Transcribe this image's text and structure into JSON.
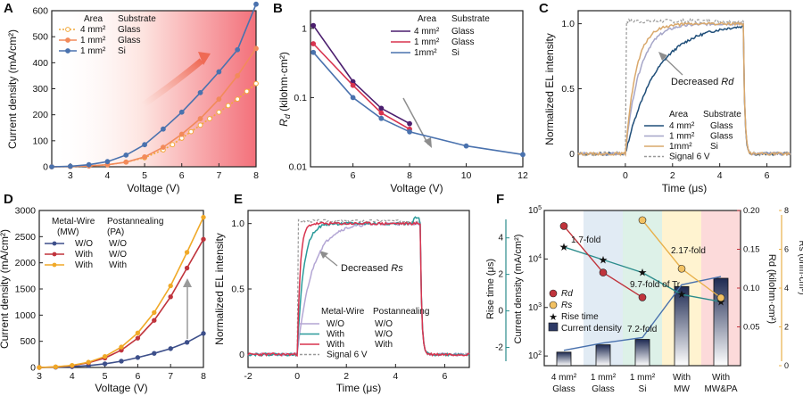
{
  "chart_data": [
    {
      "panel": "A",
      "type": "line",
      "xlabel": "Voltage (V)",
      "ylabel": "Current density (mA/cm²)",
      "xlim": [
        2.5,
        8
      ],
      "ylim": [
        0,
        600
      ],
      "xticks": [
        3,
        4,
        5,
        6,
        7,
        8
      ],
      "yticks": [
        0,
        100,
        200,
        300,
        400,
        500,
        600
      ],
      "legend_headers": [
        "Area",
        "Substrate"
      ],
      "series": [
        {
          "name": "4 mm²",
          "substrate": "Glass",
          "color": "#f2a83a",
          "style": "dotted-open",
          "x": [
            2.5,
            3,
            3.5,
            4,
            4.5,
            5,
            5.5,
            5.75,
            6,
            6.25,
            6.5,
            6.75,
            7,
            7.25,
            7.5,
            7.75,
            8
          ],
          "y": [
            0,
            1,
            3,
            8,
            18,
            35,
            65,
            85,
            110,
            135,
            160,
            185,
            210,
            235,
            260,
            290,
            320
          ]
        },
        {
          "name": "1 mm²",
          "substrate": "Glass",
          "color": "#f28a5a",
          "style": "solid",
          "x": [
            2.5,
            3,
            3.5,
            4,
            4.5,
            5,
            5.5,
            6,
            6.5,
            7,
            7.5,
            8
          ],
          "y": [
            0,
            1,
            3,
            8,
            18,
            38,
            75,
            125,
            185,
            260,
            350,
            455
          ]
        },
        {
          "name": "1 mm²",
          "substrate": "Si",
          "color": "#4a72ae",
          "style": "solid",
          "x": [
            2.5,
            3,
            3.5,
            4,
            4.5,
            5,
            5.5,
            6,
            6.5,
            7,
            7.5,
            8
          ],
          "y": [
            0,
            2,
            8,
            20,
            45,
            85,
            145,
            210,
            285,
            365,
            450,
            625
          ]
        }
      ]
    },
    {
      "panel": "B",
      "type": "line",
      "yscale": "log",
      "xlabel": "Voltage (V)",
      "ylabel": "Rd (kilohm·cm²)",
      "xlim": [
        4.5,
        12
      ],
      "ylim": [
        0.01,
        1.8
      ],
      "xticks": [
        6,
        8,
        10,
        12
      ],
      "yticks": [
        0.01,
        0.1,
        1
      ],
      "legend_headers": [
        "Area",
        "Substrate"
      ],
      "series": [
        {
          "name": "4 mm²",
          "substrate": "Glass",
          "color": "#4b1e6e",
          "x": [
            4.6,
            6,
            7,
            8
          ],
          "y": [
            1.1,
            0.17,
            0.07,
            0.042
          ]
        },
        {
          "name": "1 mm²",
          "substrate": "Glass",
          "color": "#d8344f",
          "x": [
            4.6,
            6,
            7,
            8
          ],
          "y": [
            0.6,
            0.15,
            0.06,
            0.035
          ]
        },
        {
          "name": "1mm²",
          "substrate": "Si",
          "color": "#4a72ae",
          "x": [
            4.6,
            6,
            7,
            8,
            10,
            12
          ],
          "y": [
            0.45,
            0.1,
            0.05,
            0.032,
            0.02,
            0.015
          ]
        }
      ]
    },
    {
      "panel": "C",
      "type": "line",
      "xlabel": "Time (μs)",
      "ylabel": "Normalized EL intensity",
      "xlim": [
        -2,
        7
      ],
      "ylim": [
        -0.1,
        1.1
      ],
      "xticks": [
        0,
        2,
        4,
        6
      ],
      "yticks": [
        0,
        0.5,
        1.0
      ],
      "annotation": "Decreased",
      "annotation_symbol": "Rd",
      "legend_headers": [
        "Area",
        "Substrate"
      ],
      "series": [
        {
          "name": "4 mm²",
          "substrate": "Glass",
          "color": "#1f4e79"
        },
        {
          "name": "1 mm²",
          "substrate": "Glass",
          "color": "#a6a6c8"
        },
        {
          "name": "1mm²",
          "substrate": "Si",
          "color": "#d9a86b"
        },
        {
          "name": "Signal 6 V",
          "substrate": "",
          "color": "#999999",
          "style": "dashed"
        }
      ]
    },
    {
      "panel": "D",
      "type": "line",
      "xlabel": "Voltage (V)",
      "ylabel": "Current density (mA/cm²)",
      "xlim": [
        3,
        8
      ],
      "ylim": [
        0,
        3000
      ],
      "xticks": [
        3,
        4,
        5,
        6,
        7,
        8
      ],
      "yticks": [
        0,
        500,
        1000,
        1500,
        2000,
        2500,
        3000
      ],
      "legend_headers": [
        "Metal-Wire",
        "Postannealing"
      ],
      "legend_subheaders": [
        "(MW)",
        "(PA)"
      ],
      "series": [
        {
          "name": "W/O",
          "pa": "W/O",
          "color": "#3d4f8a",
          "x": [
            3,
            3.5,
            4,
            4.5,
            5,
            5.5,
            6,
            6.5,
            7,
            7.5,
            8
          ],
          "y": [
            0,
            5,
            15,
            35,
            70,
            120,
            190,
            270,
            360,
            480,
            650
          ]
        },
        {
          "name": "With",
          "pa": "W/O",
          "color": "#c0343c",
          "x": [
            3,
            3.5,
            4,
            4.5,
            5,
            5.5,
            6,
            6.5,
            7,
            7.5,
            8
          ],
          "y": [
            0,
            10,
            35,
            90,
            180,
            330,
            560,
            900,
            1350,
            1900,
            2450
          ]
        },
        {
          "name": "With",
          "pa": "With",
          "color": "#f0a928",
          "x": [
            3,
            3.5,
            4,
            4.5,
            5,
            5.5,
            6,
            6.5,
            7,
            7.5,
            8
          ],
          "y": [
            0,
            12,
            40,
            100,
            210,
            390,
            660,
            1050,
            1560,
            2200,
            2870
          ]
        }
      ]
    },
    {
      "panel": "E",
      "type": "line",
      "xlabel": "Time (μs)",
      "ylabel": "Normalized EL intensity",
      "xlim": [
        -2,
        7
      ],
      "ylim": [
        -0.1,
        1.1
      ],
      "xticks": [
        -2,
        0,
        2,
        4,
        6
      ],
      "yticks": [
        0,
        0.5,
        1.0
      ],
      "annotation": "Decreased",
      "annotation_symbol": "Rs",
      "legend_headers": [
        "Metal-Wire",
        "Postannealing"
      ],
      "series": [
        {
          "name": "W/O",
          "pa": "W/O",
          "color": "#b3a6d4"
        },
        {
          "name": "With",
          "pa": "W/O",
          "color": "#2a9a9a"
        },
        {
          "name": "With",
          "pa": "With",
          "color": "#d8344f"
        },
        {
          "name": "Signal 6 V",
          "pa": "",
          "color": "#999999",
          "style": "dashed"
        }
      ]
    },
    {
      "panel": "F",
      "type": "bar",
      "categories": [
        [
          "4 mm²",
          "Glass"
        ],
        [
          "1 mm²",
          "Glass"
        ],
        [
          "1 mm²",
          "Si"
        ],
        [
          "With",
          "MW"
        ],
        [
          "With",
          "MW&PA"
        ]
      ],
      "y_left_label": "Current density (mA/cm²)",
      "y_left2_label": "Rise time (μs)",
      "y_right_label": "Rd (kilohm·cm²)",
      "y_right2_label": "Rs (ohm·cm²)",
      "current_density": [
        120,
        170,
        220,
        2700,
        4000
      ],
      "rise_time": [
        3.5,
        2.8,
        2.1,
        0.9,
        0.5
      ],
      "rd": [
        0.18,
        0.12,
        0.088
      ],
      "rs": [
        7.5,
        5.0,
        3.5
      ],
      "annotations": [
        "1.7-fold",
        "2.17-fold",
        "9.7-fold of Tr",
        "7.2-fold"
      ],
      "legend": [
        "Rd",
        "Rs",
        "Rise time",
        "Current density"
      ]
    }
  ],
  "panel_letters": [
    "A",
    "B",
    "C",
    "D",
    "E",
    "F"
  ]
}
